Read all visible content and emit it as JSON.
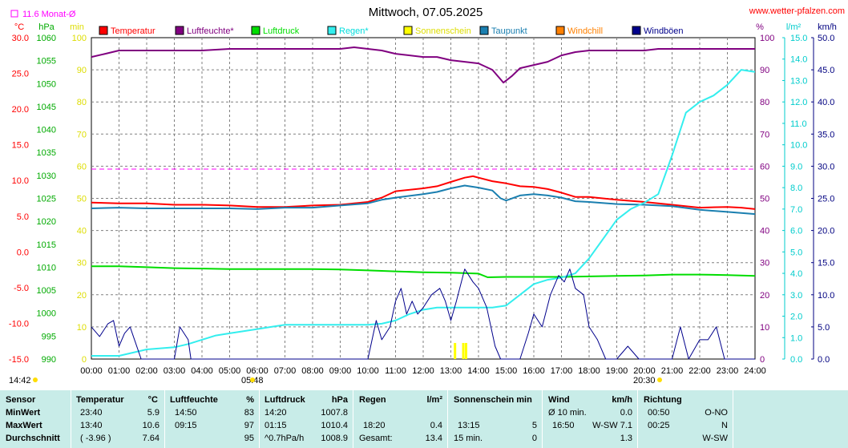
{
  "header": {
    "title": "Mittwoch, 07.05.2025",
    "site": "www.wetter-pfalzen.com",
    "monthly_avg_label": "11.6 Monat-Ø",
    "sunrise": "05:48",
    "sunset": "20:30",
    "station_time": "14:42"
  },
  "colors": {
    "temperatur": "#ff0000",
    "luftfeuchte": "#800080",
    "luftdruck": "#00dd00",
    "regen": "#33eeee",
    "sonnenschein": "#ffff00",
    "taupunkt": "#1a7fb0",
    "windchill": "#ff8000",
    "windboeen": "#00008b",
    "monatsmittel": "#ff00ff"
  },
  "chart_data": {
    "type": "line",
    "title": "Mittwoch, 07.05.2025",
    "legend": [
      {
        "name": "Temperatur",
        "color": "#ff0000"
      },
      {
        "name": "Luftfeuchte*",
        "color": "#800080"
      },
      {
        "name": "Luftdruck",
        "color": "#00dd00"
      },
      {
        "name": "Regen*",
        "color": "#33eeee"
      },
      {
        "name": "Sonnenschein",
        "color": "#ffff00"
      },
      {
        "name": "Taupunkt",
        "color": "#1a7fb0"
      },
      {
        "name": "Windchill",
        "color": "#ff8000"
      },
      {
        "name": "Windböen",
        "color": "#00008b"
      }
    ],
    "x_ticks": [
      "00:00",
      "01:00",
      "02:00",
      "03:00",
      "04:00",
      "05:00",
      "06:00",
      "07:00",
      "08:00",
      "09:00",
      "10:00",
      "11:00",
      "12:00",
      "13:00",
      "14:00",
      "15:00",
      "16:00",
      "17:00",
      "18:00",
      "19:00",
      "20:00",
      "21:00",
      "22:00",
      "23:00",
      "24:00"
    ],
    "xlim": [
      0,
      24
    ],
    "axes": {
      "temperature": {
        "unit": "°C",
        "range": [
          -15,
          30
        ],
        "ticks": [
          "30.0",
          "25.0",
          "20.0",
          "15.0",
          "10.0",
          "5.0",
          "0.0",
          "-5.0",
          "-10.0",
          "-15.0"
        ]
      },
      "pressure": {
        "unit": "hPa",
        "range": [
          990,
          1060
        ],
        "ticks": [
          "1060",
          "1055",
          "1050",
          "1045",
          "1040",
          "1035",
          "1030",
          "1025",
          "1020",
          "1015",
          "1010",
          "1005",
          "1000",
          "995",
          "990"
        ]
      },
      "sunshine": {
        "unit": "min",
        "range": [
          0,
          100
        ],
        "ticks": [
          "100",
          "90",
          "80",
          "70",
          "60",
          "50",
          "40",
          "30",
          "20",
          "10",
          "0"
        ]
      },
      "humidity": {
        "unit": "%",
        "range": [
          0,
          100
        ],
        "ticks": [
          "100",
          "90",
          "80",
          "70",
          "60",
          "50",
          "40",
          "30",
          "20",
          "10",
          "0"
        ]
      },
      "rain": {
        "unit": "l/m²",
        "range": [
          0,
          15
        ],
        "ticks": [
          "15.0",
          "14.0",
          "13.0",
          "12.0",
          "11.0",
          "10.0",
          "9.0",
          "8.0",
          "7.0",
          "6.0",
          "5.0",
          "4.0",
          "3.0",
          "2.0",
          "1.0",
          "0.0"
        ]
      },
      "wind": {
        "unit": "km/h",
        "range": [
          0,
          50
        ],
        "ticks": [
          "50.0",
          "45.0",
          "40.0",
          "35.0",
          "30.0",
          "25.0",
          "20.0",
          "15.0",
          "10.0",
          "5.0",
          "0.0"
        ]
      }
    },
    "monthly_avg_temperature": 11.6,
    "series": [
      {
        "name": "Temperatur",
        "axis": "temperature",
        "color": "#ff0000",
        "points": [
          [
            0,
            6.9
          ],
          [
            1,
            6.8
          ],
          [
            2,
            6.8
          ],
          [
            3,
            6.6
          ],
          [
            4,
            6.6
          ],
          [
            5,
            6.5
          ],
          [
            6,
            6.3
          ],
          [
            7,
            6.3
          ],
          [
            8,
            6.5
          ],
          [
            9,
            6.6
          ],
          [
            10,
            7.0
          ],
          [
            10.5,
            7.6
          ],
          [
            11,
            8.5
          ],
          [
            12,
            8.9
          ],
          [
            12.5,
            9.2
          ],
          [
            13,
            9.8
          ],
          [
            13.5,
            10.4
          ],
          [
            13.8,
            10.6
          ],
          [
            14,
            10.4
          ],
          [
            14.5,
            9.9
          ],
          [
            15,
            9.6
          ],
          [
            15.5,
            9.2
          ],
          [
            16,
            9.1
          ],
          [
            16.5,
            8.8
          ],
          [
            17,
            8.3
          ],
          [
            17.5,
            7.7
          ],
          [
            18,
            7.7
          ],
          [
            19,
            7.3
          ],
          [
            20,
            7.0
          ],
          [
            21,
            6.6
          ],
          [
            22,
            6.2
          ],
          [
            23,
            6.3
          ],
          [
            23.5,
            6.2
          ],
          [
            24,
            6.0
          ]
        ]
      },
      {
        "name": "Taupunkt",
        "axis": "temperature",
        "color": "#1a7fb0",
        "points": [
          [
            0,
            6.1
          ],
          [
            1,
            6.2
          ],
          [
            2,
            6.1
          ],
          [
            3,
            6.1
          ],
          [
            4,
            6.1
          ],
          [
            5,
            6.1
          ],
          [
            6,
            6.0
          ],
          [
            7,
            6.2
          ],
          [
            8,
            6.2
          ],
          [
            9,
            6.5
          ],
          [
            10,
            6.8
          ],
          [
            10.5,
            7.3
          ],
          [
            11,
            7.6
          ],
          [
            12,
            8.1
          ],
          [
            12.5,
            8.4
          ],
          [
            13,
            8.9
          ],
          [
            13.5,
            9.3
          ],
          [
            14,
            9.0
          ],
          [
            14.5,
            8.6
          ],
          [
            14.8,
            7.5
          ],
          [
            15,
            7.2
          ],
          [
            15.5,
            7.9
          ],
          [
            16,
            8.1
          ],
          [
            16.5,
            7.9
          ],
          [
            17,
            7.6
          ],
          [
            17.5,
            7.1
          ],
          [
            18,
            7.0
          ],
          [
            19,
            6.7
          ],
          [
            20,
            6.6
          ],
          [
            21,
            6.4
          ],
          [
            22,
            5.9
          ],
          [
            23,
            5.6
          ],
          [
            24,
            5.3
          ]
        ]
      },
      {
        "name": "Luftfeuchte*",
        "axis": "humidity",
        "color": "#800080",
        "points": [
          [
            0,
            94
          ],
          [
            0.5,
            95
          ],
          [
            1,
            96
          ],
          [
            2,
            96
          ],
          [
            3,
            96
          ],
          [
            4,
            96
          ],
          [
            5,
            96.5
          ],
          [
            6,
            96.5
          ],
          [
            7,
            96.5
          ],
          [
            8,
            96.5
          ],
          [
            9,
            96.5
          ],
          [
            9.5,
            97
          ],
          [
            10,
            96.5
          ],
          [
            10.5,
            96
          ],
          [
            11,
            95
          ],
          [
            12,
            94
          ],
          [
            12.5,
            94
          ],
          [
            13,
            93
          ],
          [
            13.5,
            92.5
          ],
          [
            14,
            92
          ],
          [
            14.5,
            90
          ],
          [
            14.9,
            86
          ],
          [
            15.2,
            88
          ],
          [
            15.5,
            90.5
          ],
          [
            16,
            91.5
          ],
          [
            16.5,
            92.5
          ],
          [
            17,
            94.5
          ],
          [
            17.5,
            95.5
          ],
          [
            18,
            96
          ],
          [
            19,
            96
          ],
          [
            20,
            96
          ],
          [
            20.5,
            96.5
          ],
          [
            21,
            96.5
          ],
          [
            22,
            96.5
          ],
          [
            23,
            96.5
          ],
          [
            24,
            96.5
          ]
        ]
      },
      {
        "name": "Luftdruck",
        "axis": "pressure",
        "color": "#00dd00",
        "points": [
          [
            0,
            1010.2
          ],
          [
            1,
            1010.2
          ],
          [
            2,
            1010.0
          ],
          [
            3,
            1009.8
          ],
          [
            4,
            1009.7
          ],
          [
            5,
            1009.6
          ],
          [
            6,
            1009.6
          ],
          [
            7,
            1009.6
          ],
          [
            8,
            1009.6
          ],
          [
            9,
            1009.5
          ],
          [
            10,
            1009.3
          ],
          [
            11,
            1009.1
          ],
          [
            12,
            1008.9
          ],
          [
            13,
            1008.8
          ],
          [
            14,
            1008.6
          ],
          [
            14.33,
            1007.8
          ],
          [
            15,
            1007.9
          ],
          [
            16,
            1007.9
          ],
          [
            17,
            1007.9
          ],
          [
            18,
            1008.0
          ],
          [
            19,
            1008.1
          ],
          [
            20,
            1008.2
          ],
          [
            21,
            1008.4
          ],
          [
            22,
            1008.4
          ],
          [
            23,
            1008.3
          ],
          [
            24,
            1008.1
          ]
        ]
      },
      {
        "name": "Regen*",
        "axis": "rain",
        "color": "#33eeee",
        "points": [
          [
            0,
            0.15
          ],
          [
            1,
            0.15
          ],
          [
            1.5,
            0.3
          ],
          [
            2,
            0.45
          ],
          [
            3,
            0.55
          ],
          [
            3.5,
            0.7
          ],
          [
            4,
            0.9
          ],
          [
            4.5,
            1.1
          ],
          [
            5,
            1.2
          ],
          [
            5.5,
            1.3
          ],
          [
            6,
            1.4
          ],
          [
            6.5,
            1.5
          ],
          [
            7,
            1.6
          ],
          [
            8,
            1.6
          ],
          [
            9,
            1.6
          ],
          [
            10,
            1.6
          ],
          [
            10.5,
            1.65
          ],
          [
            11,
            1.8
          ],
          [
            11.5,
            2.1
          ],
          [
            12,
            2.3
          ],
          [
            12.5,
            2.4
          ],
          [
            13,
            2.4
          ],
          [
            13.5,
            2.4
          ],
          [
            14,
            2.4
          ],
          [
            14.5,
            2.4
          ],
          [
            15,
            2.5
          ],
          [
            15.5,
            3.0
          ],
          [
            16,
            3.5
          ],
          [
            16.5,
            3.7
          ],
          [
            17,
            3.8
          ],
          [
            17.5,
            4.0
          ],
          [
            18,
            4.7
          ],
          [
            18.5,
            5.6
          ],
          [
            19,
            6.5
          ],
          [
            19.5,
            7.0
          ],
          [
            20,
            7.3
          ],
          [
            20.5,
            7.7
          ],
          [
            21,
            9.5
          ],
          [
            21.5,
            11.5
          ],
          [
            22,
            12.0
          ],
          [
            22.5,
            12.3
          ],
          [
            23,
            12.8
          ],
          [
            23.5,
            13.5
          ],
          [
            24,
            13.4
          ]
        ]
      },
      {
        "name": "Windböen",
        "axis": "wind",
        "color": "#00008b",
        "points": [
          [
            0,
            5
          ],
          [
            0.3,
            3.5
          ],
          [
            0.6,
            5.5
          ],
          [
            0.8,
            6
          ],
          [
            1,
            2
          ],
          [
            1.2,
            4
          ],
          [
            1.4,
            5
          ],
          [
            1.6,
            2.5
          ],
          [
            1.8,
            0
          ],
          [
            3,
            0
          ],
          [
            3.2,
            5
          ],
          [
            3.5,
            3
          ],
          [
            3.6,
            0
          ],
          [
            10,
            0
          ],
          [
            10.3,
            6
          ],
          [
            10.5,
            3
          ],
          [
            10.8,
            5
          ],
          [
            11,
            9
          ],
          [
            11.2,
            11
          ],
          [
            11.4,
            7
          ],
          [
            11.6,
            9
          ],
          [
            11.8,
            7
          ],
          [
            12,
            8
          ],
          [
            12.3,
            10
          ],
          [
            12.6,
            11
          ],
          [
            12.8,
            9
          ],
          [
            13,
            6
          ],
          [
            13.2,
            9
          ],
          [
            13.5,
            14
          ],
          [
            13.8,
            12
          ],
          [
            14,
            11
          ],
          [
            14.3,
            8
          ],
          [
            14.6,
            2
          ],
          [
            14.8,
            0
          ],
          [
            15.5,
            0
          ],
          [
            15.8,
            4
          ],
          [
            16,
            7
          ],
          [
            16.3,
            5
          ],
          [
            16.6,
            10
          ],
          [
            16.9,
            13
          ],
          [
            17.1,
            12
          ],
          [
            17.3,
            14
          ],
          [
            17.5,
            11
          ],
          [
            17.8,
            10
          ],
          [
            18,
            5
          ],
          [
            18.3,
            3
          ],
          [
            18.6,
            0
          ],
          [
            19,
            0
          ],
          [
            19.4,
            2
          ],
          [
            19.8,
            0
          ],
          [
            21,
            0
          ],
          [
            21.3,
            5
          ],
          [
            21.6,
            0
          ],
          [
            22,
            3
          ],
          [
            22.3,
            3
          ],
          [
            22.6,
            5
          ],
          [
            22.9,
            0
          ],
          [
            24,
            0
          ]
        ]
      },
      {
        "name": "Sonnenschein",
        "axis": "sunshine",
        "color": "#ffff00",
        "bars": [
          [
            13.15,
            5
          ],
          [
            13.45,
            5
          ],
          [
            13.55,
            5
          ]
        ]
      }
    ]
  },
  "stats": {
    "headers": {
      "sensor": "Sensor",
      "temperatur": "Temperatur",
      "temperatur_unit": "°C",
      "luftfeuchte": "Luftfeuchte",
      "luftfeuchte_unit": "%",
      "luftdruck": "Luftdruck",
      "luftdruck_unit": "hPa",
      "regen": "Regen",
      "regen_unit": "l/m²",
      "sonne": "Sonnenschein min",
      "wind": "Wind",
      "wind_unit": "km/h",
      "richtung": "Richtung"
    },
    "rows": [
      {
        "label": "MinWert",
        "temp_time": "23:40",
        "temp_val": "5.9",
        "hum_time": "14:50",
        "hum_val": "83",
        "pres_time": "14:20",
        "pres_val": "1007.8",
        "rain_time": "",
        "rain_val": "",
        "sun_time": "",
        "sun_val": "",
        "wind_time": "Ø 10 min.",
        "wind_val": "0.0",
        "dir_time": "00:50",
        "dir_val": "O-NO"
      },
      {
        "label": "MaxWert",
        "temp_time": "13:40",
        "temp_val": "10.6",
        "hum_time": "09:15",
        "hum_val": "97",
        "pres_time": "01:15",
        "pres_val": "1010.4",
        "rain_time": "18:20",
        "rain_val": "0.4",
        "sun_time": "13:15",
        "sun_val": "5",
        "wind_time": "16:50",
        "wind_val": "W-SW 7.1",
        "dir_time": "00:25",
        "dir_val": "N"
      },
      {
        "label": "Durchschnitt",
        "temp_time": "( -3.96 )",
        "temp_val": "7.64",
        "hum_time": "",
        "hum_val": "95",
        "pres_time": "^0.7hPa/h",
        "pres_val": "1008.9",
        "rain_time": "Gesamt:",
        "rain_val": "13.4",
        "sun_time": "15 min.",
        "sun_val": "0",
        "wind_time": "",
        "wind_val": "1.3",
        "dir_time": "",
        "dir_val": "W-SW"
      }
    ]
  }
}
